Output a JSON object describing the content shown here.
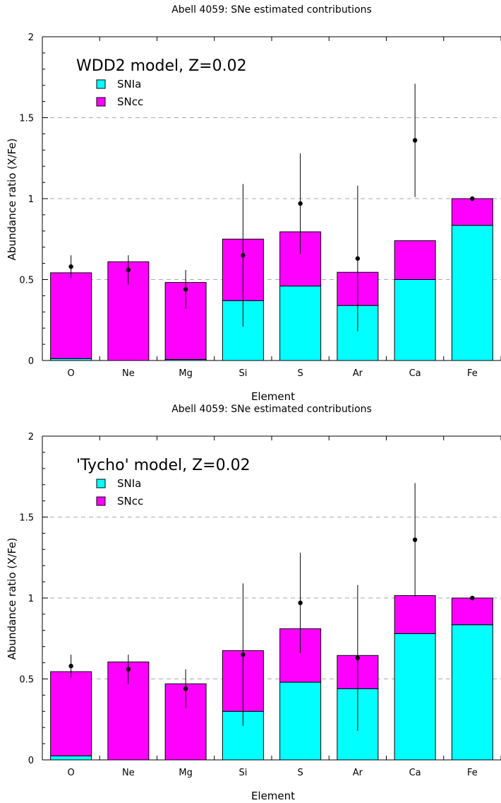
{
  "colors": {
    "snia": "#00ffff",
    "sncc": "#ff00ff",
    "grid": "#aaaaaa"
  },
  "chart_data": [
    {
      "type": "bar",
      "stacked": true,
      "title": "Abell 4059: SNe estimated contributions",
      "annotation": "WDD2  model, Z=0.02",
      "xlabel": "Element",
      "ylabel": "Abundance ratio (X/Fe)",
      "ylim": [
        0,
        2
      ],
      "yticks": [
        "0",
        "0.5",
        "1",
        "1.5",
        "2"
      ],
      "grid": "dashed horizontal at 0.5, 1, 1.5",
      "categories": [
        "O",
        "Ne",
        "Mg",
        "Si",
        "S",
        "Ar",
        "Ca",
        "Fe"
      ],
      "series": [
        {
          "name": "SNIa",
          "values": [
            0.012,
            0.0,
            0.007,
            0.37,
            0.46,
            0.34,
            0.5,
            0.835
          ]
        },
        {
          "name": "SNcc",
          "values": [
            0.53,
            0.61,
            0.475,
            0.38,
            0.335,
            0.205,
            0.24,
            0.165
          ]
        }
      ],
      "observed": {
        "values": [
          0.58,
          0.56,
          0.44,
          0.65,
          0.97,
          0.63,
          1.36,
          1.0
        ],
        "err_low": [
          0.51,
          0.47,
          0.32,
          0.21,
          0.66,
          0.18,
          1.01,
          1.0
        ],
        "err_high": [
          0.65,
          0.65,
          0.56,
          1.09,
          1.28,
          1.08,
          1.71,
          1.0
        ]
      },
      "legend": "top-left"
    },
    {
      "type": "bar",
      "stacked": true,
      "title": "Abell 4059: SNe estimated contributions",
      "annotation": "'Tycho'  model, Z=0.02",
      "xlabel": "Element",
      "ylabel": "Abundance ratio (X/Fe)",
      "ylim": [
        0,
        2
      ],
      "yticks": [
        "0",
        "0.5",
        "1",
        "1.5",
        "2"
      ],
      "grid": "dashed horizontal at 0.5, 1, 1.5",
      "categories": [
        "O",
        "Ne",
        "Mg",
        "Si",
        "S",
        "Ar",
        "Ca",
        "Fe"
      ],
      "series": [
        {
          "name": "SNIa",
          "values": [
            0.025,
            0.0,
            0.0,
            0.3,
            0.48,
            0.44,
            0.78,
            0.835
          ]
        },
        {
          "name": "SNcc",
          "values": [
            0.52,
            0.605,
            0.47,
            0.375,
            0.33,
            0.205,
            0.235,
            0.165
          ]
        }
      ],
      "observed": {
        "values": [
          0.58,
          0.56,
          0.44,
          0.65,
          0.97,
          0.63,
          1.36,
          1.0
        ],
        "err_low": [
          0.51,
          0.47,
          0.32,
          0.21,
          0.66,
          0.18,
          1.01,
          1.0
        ],
        "err_high": [
          0.65,
          0.65,
          0.56,
          1.09,
          1.28,
          1.08,
          1.71,
          1.0
        ]
      },
      "legend": "top-left"
    }
  ]
}
